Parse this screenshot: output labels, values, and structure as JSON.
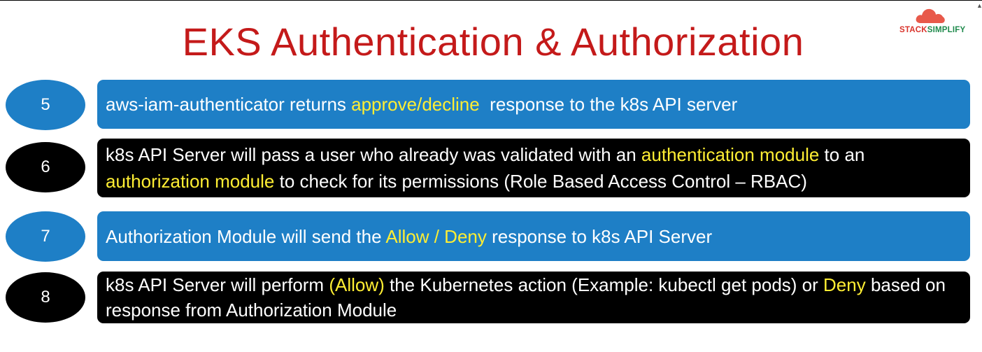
{
  "title": "EKS Authentication & Authorization",
  "logo": {
    "text_part1": "STACK",
    "text_part2": "SIMPLIFY",
    "icon": "cloud-icon"
  },
  "colors": {
    "title": "#c41a1a",
    "blue": "#1e7fc6",
    "black": "#000000",
    "highlight": "#ffee33"
  },
  "steps": [
    {
      "number": "5",
      "style": "blue",
      "segments": [
        {
          "text": "aws-iam-authenticator returns ",
          "highlight": false
        },
        {
          "text": "approve/decline",
          "highlight": true
        },
        {
          "text": "  response to the k8s API server",
          "highlight": false
        }
      ]
    },
    {
      "number": "6",
      "style": "black",
      "segments": [
        {
          "text": "k8s API Server will pass a user who already was validated with an ",
          "highlight": false
        },
        {
          "text": "authentication module",
          "highlight": true
        },
        {
          "text": " to an ",
          "highlight": false
        },
        {
          "text": "authorization module",
          "highlight": true
        },
        {
          "text": " to check for its permissions (Role Based Access Control – RBAC)",
          "highlight": false
        }
      ]
    },
    {
      "number": "7",
      "style": "blue",
      "segments": [
        {
          "text": "Authorization Module will send the ",
          "highlight": false
        },
        {
          "text": "Allow / Deny",
          "highlight": true
        },
        {
          "text": " response to k8s API Server",
          "highlight": false
        }
      ]
    },
    {
      "number": "8",
      "style": "black",
      "segments": [
        {
          "text": "k8s API Server will perform ",
          "highlight": false
        },
        {
          "text": "(Allow)",
          "highlight": true
        },
        {
          "text": " the Kubernetes action (Example: kubectl get pods) or ",
          "highlight": false
        },
        {
          "text": "Deny",
          "highlight": true
        },
        {
          "text": " based on response from Authorization Module",
          "highlight": false
        }
      ]
    }
  ]
}
